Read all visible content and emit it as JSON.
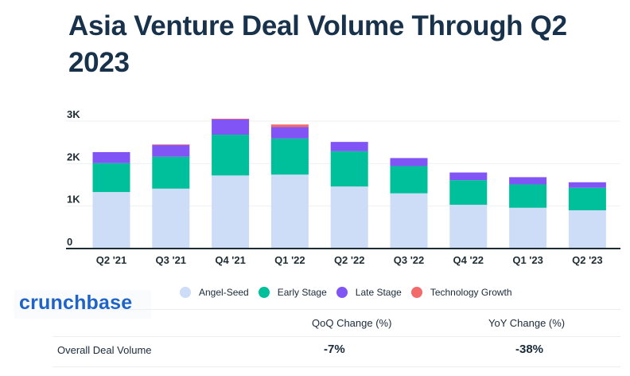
{
  "header": {
    "title": "Asia Venture Deal Volume Through Q2 2023"
  },
  "colors": {
    "angel_seed": "#cddcf7",
    "early_stage": "#00bf9b",
    "late_stage": "#8155f5",
    "technology_growth": "#f26a6a",
    "axis": "#1e2d33",
    "grid": "#eef0f2"
  },
  "chart_data": {
    "type": "bar",
    "stacked": true,
    "title": "Asia Venture Deal Volume Through Q2 2023",
    "xlabel": "",
    "ylabel": "",
    "ylim": [
      0,
      3000
    ],
    "yticks": [
      0,
      1000,
      2000,
      3000
    ],
    "ytick_labels": [
      "0",
      "1K",
      "2K",
      "3K"
    ],
    "grid": true,
    "legend_position": "bottom",
    "categories": [
      "Q2 '21",
      "Q3 '21",
      "Q4 '21",
      "Q1 '22",
      "Q2 '22",
      "Q3 '22",
      "Q4 '22",
      "Q1 '23",
      "Q2 '23"
    ],
    "series": [
      {
        "name": "Angel-Seed",
        "color": "#cddcf7",
        "values": [
          1330,
          1410,
          1720,
          1740,
          1460,
          1300,
          1030,
          960,
          900
        ]
      },
      {
        "name": "Early Stage",
        "color": "#00bf9b",
        "values": [
          680,
          750,
          960,
          850,
          830,
          640,
          580,
          550,
          530
        ]
      },
      {
        "name": "Late Stage",
        "color": "#8155f5",
        "values": [
          260,
          280,
          370,
          270,
          220,
          190,
          180,
          170,
          130
        ]
      },
      {
        "name": "Technology Growth",
        "color": "#f26a6a",
        "values": [
          0,
          10,
          5,
          60,
          0,
          0,
          0,
          0,
          0
        ]
      }
    ]
  },
  "legend": {
    "items": [
      {
        "label": "Angel-Seed",
        "color": "#cddcf7"
      },
      {
        "label": "Early Stage",
        "color": "#00bf9b"
      },
      {
        "label": "Late Stage",
        "color": "#8155f5"
      },
      {
        "label": "Technology Growth",
        "color": "#f26a6a"
      }
    ]
  },
  "logo": {
    "text": "crunchbase"
  },
  "summary_table": {
    "headers": [
      "",
      "QoQ Change (%)",
      "YoY Change (%)"
    ],
    "rows": [
      {
        "label": "Overall Deal Volume",
        "qoq": "-7%",
        "yoy": "-38%"
      }
    ]
  }
}
